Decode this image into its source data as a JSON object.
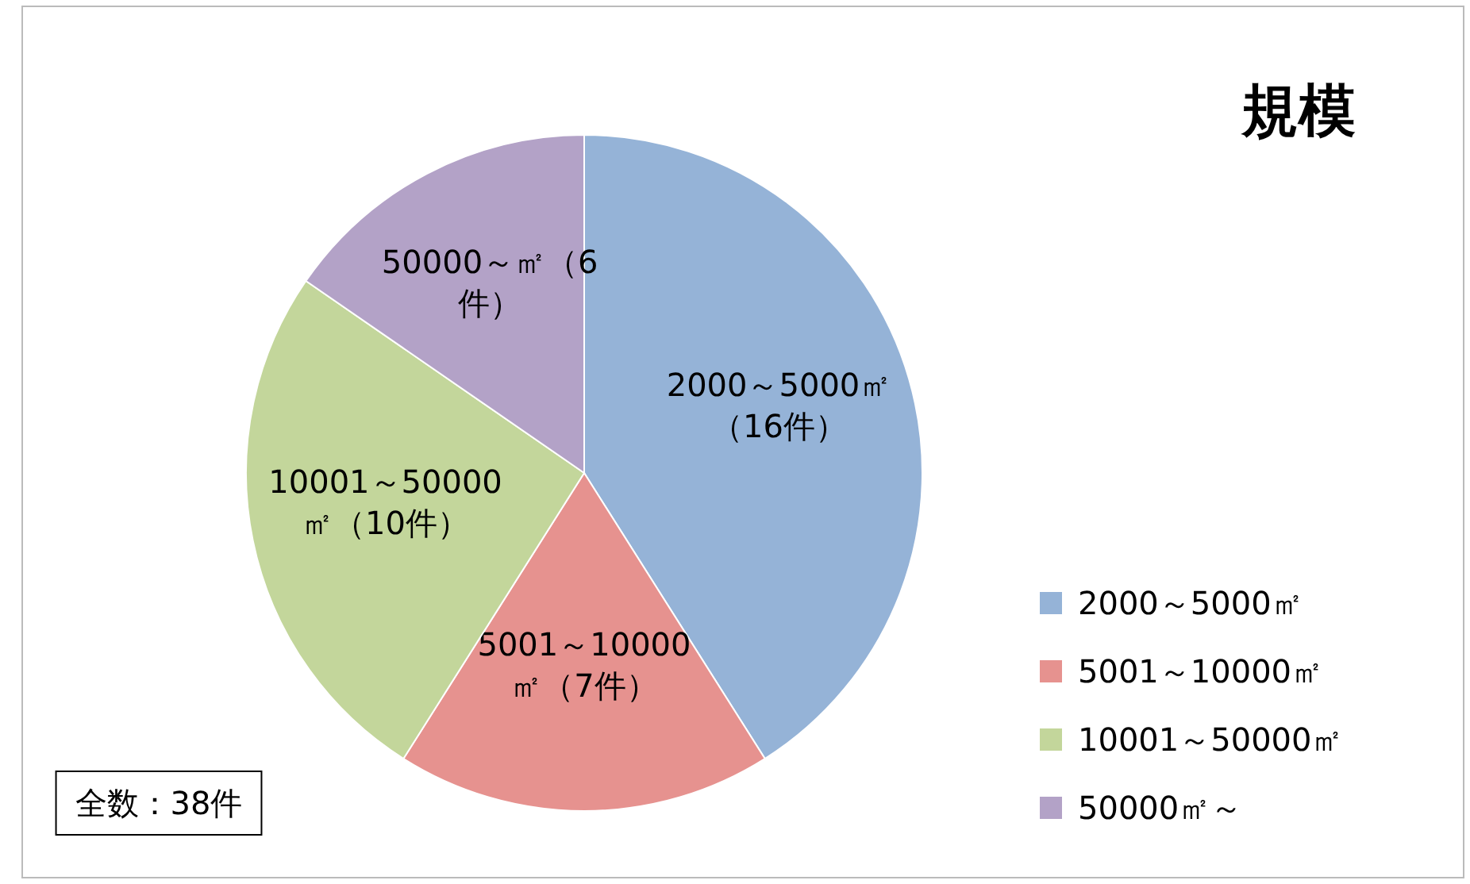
{
  "chart_data": {
    "type": "pie",
    "title": "規模",
    "categories": [
      "2000～5000㎡",
      "5001～10000㎡",
      "10001～50000㎡",
      "50000㎡～"
    ],
    "values": [
      16,
      7,
      10,
      6
    ],
    "colors": [
      "#95b3d7",
      "#e6928f",
      "#c3d69b",
      "#b3a2c7"
    ],
    "value_labels": [
      "2000～5000㎡（16件）",
      "5001～10000㎡（7件）",
      "10001～50000㎡（10件）",
      "50000～㎡（6件）"
    ],
    "legend": "right",
    "annotations": [
      "全数：38件"
    ]
  }
}
